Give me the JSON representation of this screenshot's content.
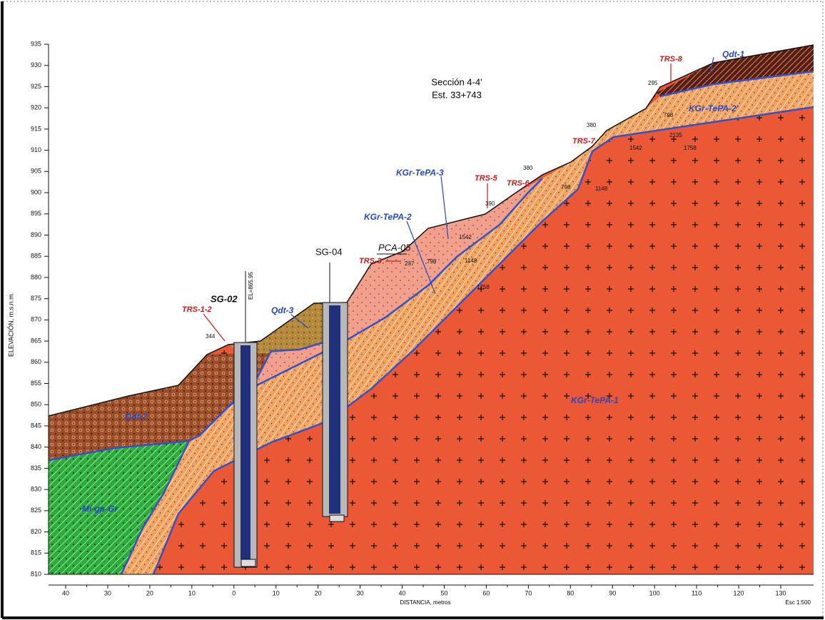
{
  "section": {
    "name": "Sección 4-4'",
    "station": "Est. 33+743"
  },
  "y_axis": {
    "label": "ELEVACIÓN, m.s.n.m.",
    "ticks": [
      935,
      930,
      925,
      920,
      915,
      910,
      905,
      900,
      895,
      890,
      885,
      880,
      875,
      870,
      865,
      860,
      855,
      850,
      845,
      840,
      835,
      830,
      825,
      820,
      815,
      810
    ]
  },
  "x_axis": {
    "label": "DISTANCIA, metros",
    "ticks": [
      "40",
      "30",
      "20",
      "10",
      "0",
      "10",
      "20",
      "30",
      "40",
      "50",
      "60",
      "70",
      "80",
      "90",
      "100",
      "110",
      "120",
      "130"
    ]
  },
  "scale": "Esc 1:500",
  "units": {
    "qdt1": "Qdt-1",
    "tepa2p": "KGr-TePA-2'",
    "tepa3": "KGr-TePA-3",
    "tepa2": "KGr-TePA-2",
    "qdt3": "Qdt-3",
    "qdt2": "Qdt-2",
    "tepa1": "KGr-TePA-1",
    "migp": "Mi-gp-Gr"
  },
  "trenches": {
    "trs8": "TRS-8",
    "trs7": "TRS-7",
    "trs6": "TRS-6",
    "trs5": "TRS-5",
    "trs3": "TRS-3",
    "trs12": "TRS-1-2"
  },
  "boreholes": {
    "sg02": "SG-02",
    "sg02_elev": "EL=865.95",
    "sg04": "SG-04",
    "pca05": "PCA-05"
  },
  "velocities": [
    "295",
    "380",
    "380",
    "390",
    "344",
    "237",
    "798",
    "2135",
    "1542",
    "1758",
    "798",
    "1148",
    "1542",
    "1148",
    "1758",
    "798"
  ]
}
